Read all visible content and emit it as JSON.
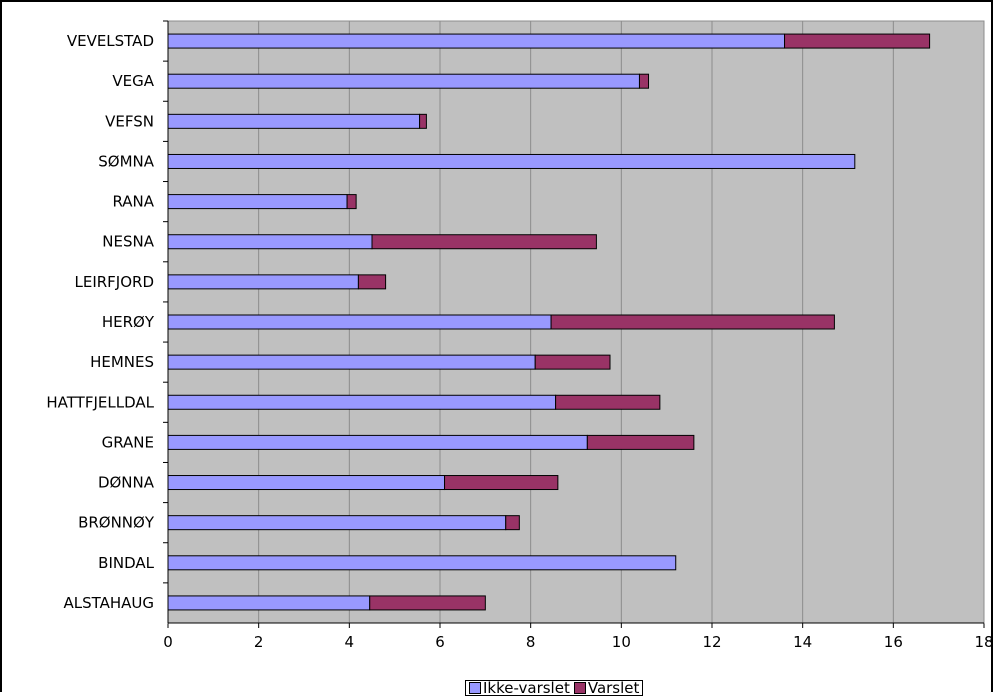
{
  "chart_data": {
    "type": "bar",
    "orientation": "horizontal",
    "stacked": true,
    "categories": [
      "VEVELSTAD",
      "VEGA",
      "VEFSN",
      "SØMNA",
      "RANA",
      "NESNA",
      "LEIRFJORD",
      "HERØY",
      "HEMNES",
      "HATTFJELLDAL",
      "GRANE",
      "DØNNA",
      "BRØNNØY",
      "BINDAL",
      "ALSTAHAUG"
    ],
    "series": [
      {
        "name": "Ikke-varslet",
        "color": "#9999ff",
        "values": [
          13.6,
          10.4,
          5.55,
          15.15,
          3.95,
          4.5,
          4.2,
          8.45,
          8.1,
          8.55,
          9.25,
          6.1,
          7.45,
          11.2,
          4.45
        ]
      },
      {
        "name": "Varslet",
        "color": "#993366",
        "values": [
          3.2,
          0.2,
          0.15,
          0,
          0.2,
          4.95,
          0.6,
          6.25,
          1.65,
          2.3,
          2.35,
          2.5,
          0.3,
          0,
          2.55
        ]
      }
    ],
    "xlim": [
      0,
      18
    ],
    "x_ticks": [
      "0",
      "2",
      "4",
      "6",
      "8",
      "10",
      "12",
      "14",
      "16",
      "18"
    ],
    "grid": "vertical",
    "plot_background": "#c0c0c0",
    "legend_position": "bottom",
    "title": "",
    "xlabel": "",
    "ylabel": ""
  }
}
